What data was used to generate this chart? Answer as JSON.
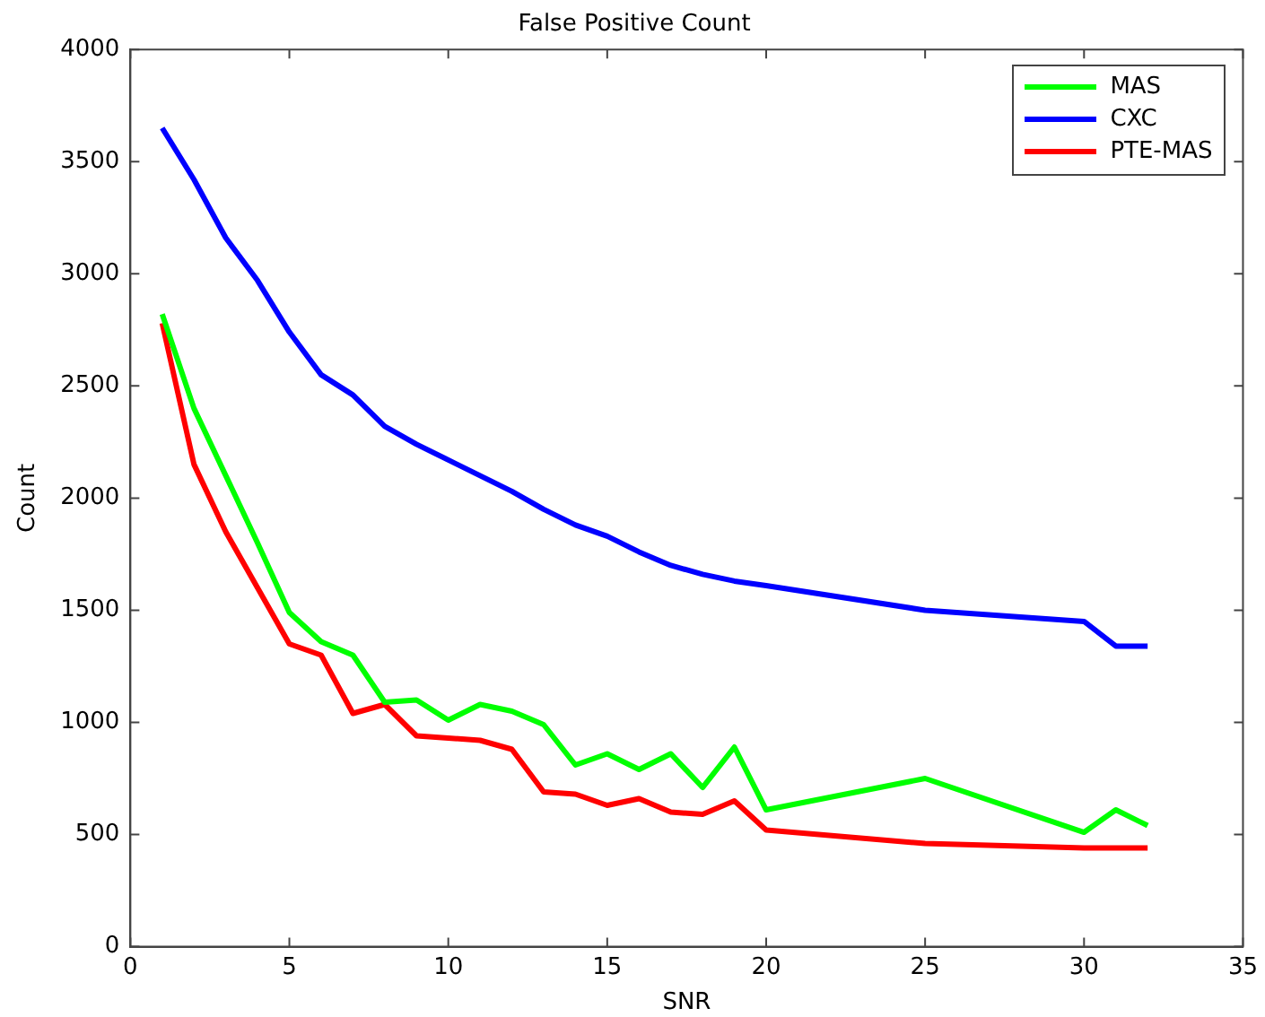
{
  "chart_data": {
    "type": "line",
    "title": "False Positive Count",
    "xlabel": "SNR",
    "ylabel": "Count",
    "x": [
      1,
      2,
      3,
      4,
      5,
      6,
      7,
      8,
      9,
      10,
      11,
      12,
      13,
      14,
      15,
      16,
      17,
      18,
      19,
      20,
      25,
      30,
      31,
      32
    ],
    "xlim": [
      0,
      35
    ],
    "xticks": [
      0,
      5,
      10,
      15,
      20,
      25,
      30,
      35
    ],
    "ylim": [
      0,
      4000
    ],
    "yticks": [
      0,
      500,
      1000,
      1500,
      2000,
      2500,
      3000,
      3500,
      4000
    ],
    "grid": false,
    "legend": "top right",
    "marker": "none",
    "line_style": "solid",
    "series": [
      {
        "name": "MAS",
        "color": "#00ff00",
        "values": [
          2820,
          2400,
          2100,
          1800,
          1490,
          1360,
          1300,
          1090,
          1100,
          1010,
          1080,
          1050,
          990,
          810,
          860,
          790,
          860,
          710,
          890,
          610,
          750,
          510,
          610,
          540
        ]
      },
      {
        "name": "CXC",
        "color": "#0000ff",
        "values": [
          3650,
          3420,
          3160,
          2970,
          2740,
          2550,
          2460,
          2320,
          2240,
          2170,
          2100,
          2030,
          1950,
          1880,
          1830,
          1760,
          1700,
          1660,
          1630,
          1610,
          1500,
          1450,
          1340,
          1340
        ]
      },
      {
        "name": "PTE-MAS",
        "color": "#ff0000",
        "values": [
          2780,
          2150,
          1850,
          1600,
          1350,
          1300,
          1040,
          1080,
          940,
          930,
          920,
          880,
          690,
          680,
          630,
          660,
          600,
          590,
          650,
          520,
          460,
          440,
          440,
          440
        ]
      }
    ]
  }
}
